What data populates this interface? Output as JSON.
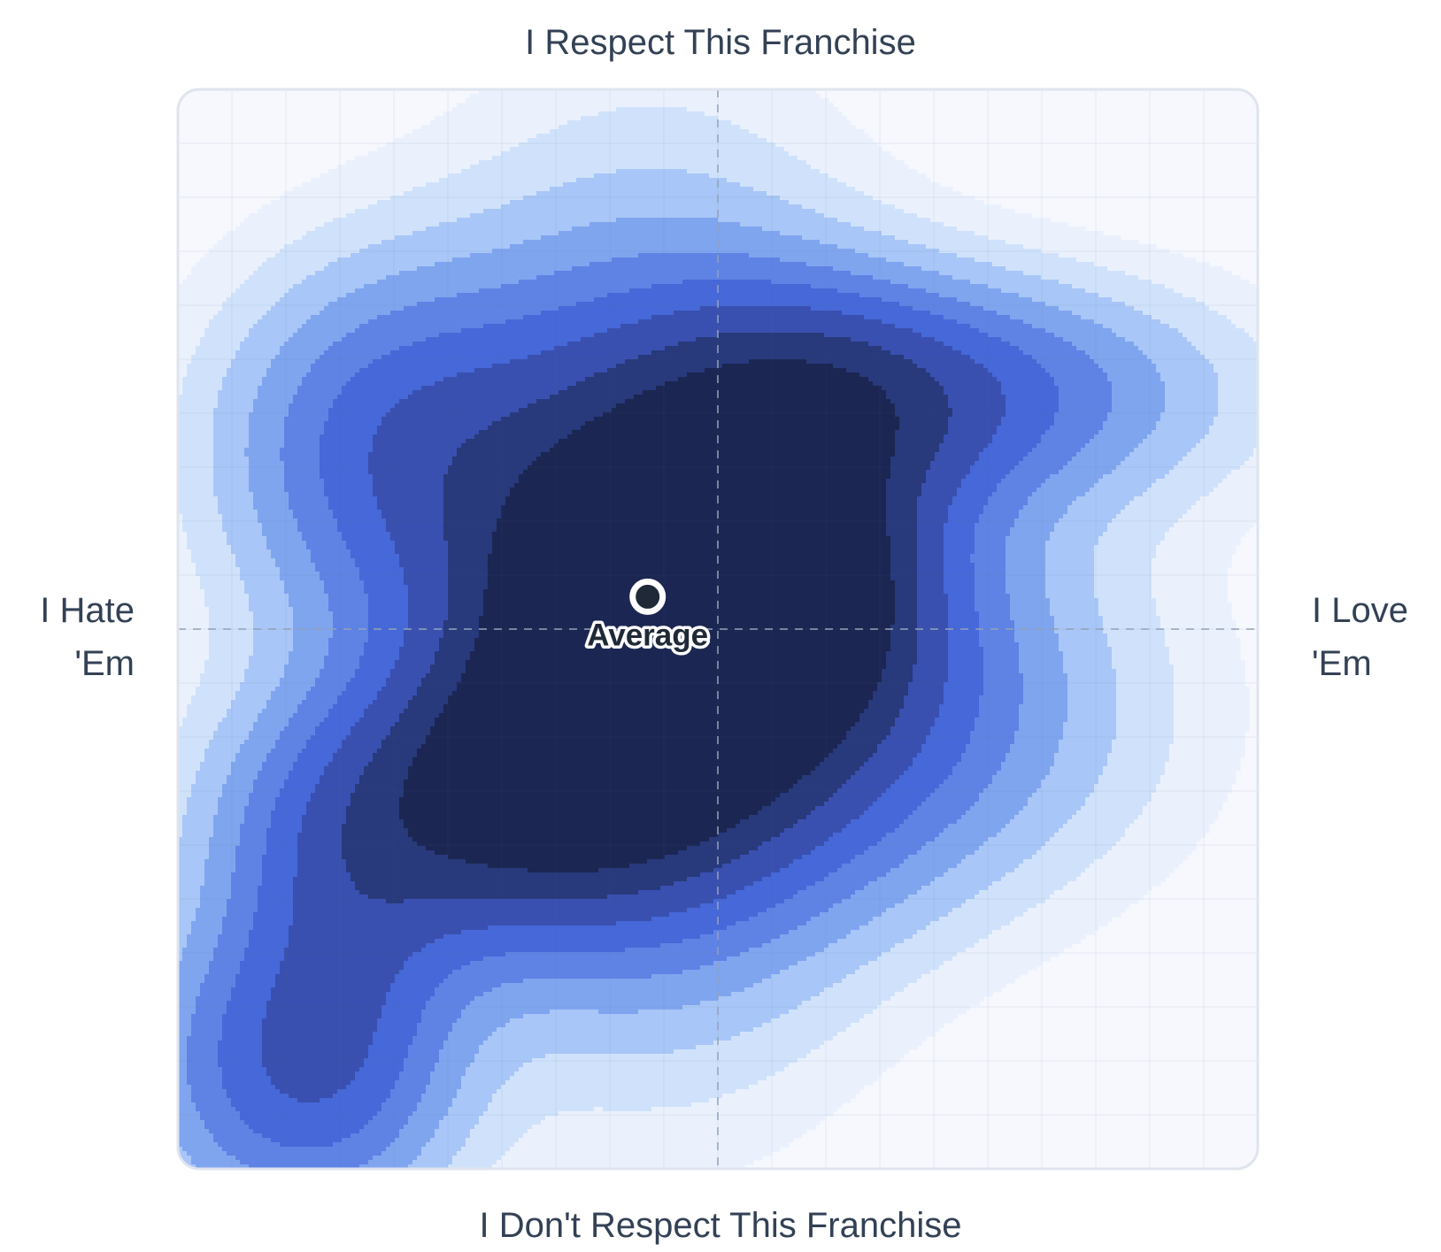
{
  "chart_data": {
    "type": "heatmap",
    "subtype": "density-contour",
    "labels": {
      "top": "I Respect This Franchise",
      "bottom": "I Don't Respect This Franchise",
      "left": [
        "I Hate",
        "'Em"
      ],
      "right": [
        "I Love",
        "'Em"
      ]
    },
    "x_range": [
      -1,
      1
    ],
    "y_range": [
      -1,
      1
    ],
    "grid": true,
    "center_lines": true,
    "density_levels": [
      "#f6f8fe",
      "#eaf1fd",
      "#d0e2fb",
      "#a8c6f7",
      "#80a5ef",
      "#5f83e4",
      "#4668d8",
      "#3950b0",
      "#28397c",
      "#1b2652"
    ],
    "density_clusters": [
      {
        "x": 0.0,
        "y": -0.02,
        "sx": 0.38,
        "sy": 0.3,
        "w": 0.7
      },
      {
        "x": -0.12,
        "y": 0.05,
        "sx": 0.26,
        "sy": 0.45,
        "w": 0.85
      },
      {
        "x": 0.0,
        "y": 0.08,
        "sx": 0.19,
        "sy": 0.15,
        "w": 1.55
      },
      {
        "x": 0.42,
        "y": 0.44,
        "sx": 0.34,
        "sy": 0.14,
        "w": 0.55
      },
      {
        "x": 0.18,
        "y": 0.4,
        "sx": 0.2,
        "sy": 0.16,
        "w": 0.4
      },
      {
        "x": -0.6,
        "y": 0.35,
        "sx": 0.22,
        "sy": 0.22,
        "w": 0.55
      },
      {
        "x": -0.5,
        "y": -0.35,
        "sx": 0.26,
        "sy": 0.17,
        "w": 0.7
      },
      {
        "x": -0.28,
        "y": -0.22,
        "sx": 0.2,
        "sy": 0.15,
        "w": 0.45
      },
      {
        "x": -0.8,
        "y": -0.82,
        "sx": 0.2,
        "sy": 0.2,
        "w": 0.55
      },
      {
        "x": -0.7,
        "y": -0.62,
        "sx": 0.15,
        "sy": 0.25,
        "w": 0.35
      },
      {
        "x": 0.25,
        "y": -0.2,
        "sx": 0.35,
        "sy": 0.2,
        "w": 0.25
      }
    ],
    "density_thresholds": [
      0.05,
      0.11,
      0.19,
      0.29,
      0.41,
      0.55,
      0.72,
      0.93,
      1.17
    ],
    "average": {
      "label": "Average",
      "x": -0.13,
      "y": 0.06
    }
  }
}
